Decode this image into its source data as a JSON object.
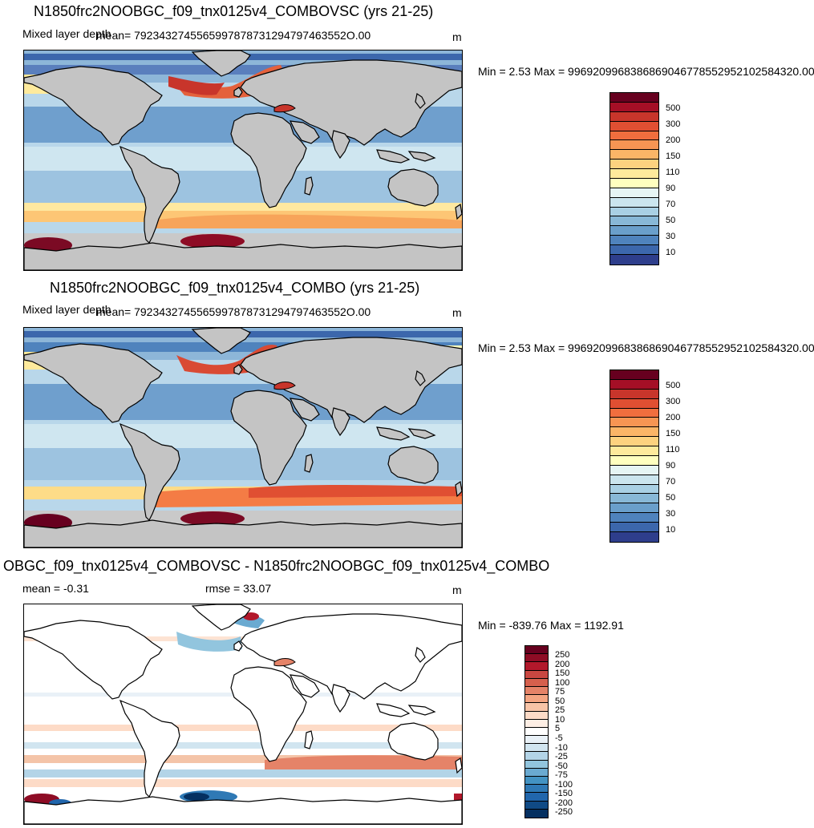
{
  "panels": [
    {
      "title": "N1850frc2NOOBGC_f09_tnx0125v4_COMBOVSC (yrs 21-25)",
      "left_label": "Mixed layer depth",
      "mean_label": "mean= 7923432745565997878731294797463552O.00",
      "units": "m",
      "minmax": "Min =   2.53 Max = 9969209968386869046778552952102584320.00",
      "colorbar": {
        "labels": [
          "500",
          "300",
          "200",
          "150",
          "110",
          "90",
          "70",
          "50",
          "30",
          "10"
        ],
        "colors": [
          "#67001f",
          "#a50f26",
          "#c8352b",
          "#e04f32",
          "#f06e3e",
          "#f79553",
          "#fbb567",
          "#fdd27f",
          "#feea9c",
          "#ffffbf",
          "#e6f5f4",
          "#cbe5ee",
          "#a9d0e4",
          "#88b8d7",
          "#6a9fcb",
          "#4f83bd",
          "#3c67ac",
          "#2e3e8c"
        ]
      }
    },
    {
      "title": "N1850frc2NOOBGC_f09_tnx0125v4_COMBO (yrs 21-25)",
      "left_label": "Mixed layer depth",
      "mean_label": "mean= 7923432745565997878731294797463552O.00",
      "units": "m",
      "minmax": "Min =   2.53 Max = 9969209968386869046778552952102584320.00",
      "colorbar": {
        "labels": [
          "500",
          "300",
          "200",
          "150",
          "110",
          "90",
          "70",
          "50",
          "30",
          "10"
        ],
        "colors": [
          "#67001f",
          "#a50f26",
          "#c8352b",
          "#e04f32",
          "#f06e3e",
          "#f79553",
          "#fbb567",
          "#fdd27f",
          "#feea9c",
          "#ffffbf",
          "#e6f5f4",
          "#cbe5ee",
          "#a9d0e4",
          "#88b8d7",
          "#6a9fcb",
          "#4f83bd",
          "#3c67ac",
          "#2e3e8c"
        ]
      }
    },
    {
      "title": "OBGC_f09_tnx0125v4_COMBOVSC - N1850frc2NOOBGC_f09_tnx0125v4_COMBO",
      "left_label": "mean =  -0.31",
      "mid_label": "rmse =  33.07",
      "units": "m",
      "minmax": "Min = -839.76 Max = 1192.91",
      "colorbar": {
        "labels": [
          "250",
          "200",
          "150",
          "100",
          "75",
          "50",
          "25",
          "10",
          "5",
          "-5",
          "-10",
          "-25",
          "-50",
          "-75",
          "-100",
          "-150",
          "-200",
          "-250"
        ],
        "colors": [
          "#67001f",
          "#8e0c25",
          "#b2182b",
          "#c94741",
          "#d6604d",
          "#e58368",
          "#f4a582",
          "#f8c4a7",
          "#fddbc7",
          "#fdeee4",
          "#ffffff",
          "#e9f1f7",
          "#d1e5f0",
          "#b3d4e7",
          "#92c5de",
          "#6aaad1",
          "#4393c3",
          "#2f79b5",
          "#2166ac",
          "#104a85",
          "#053061"
        ]
      }
    }
  ]
}
